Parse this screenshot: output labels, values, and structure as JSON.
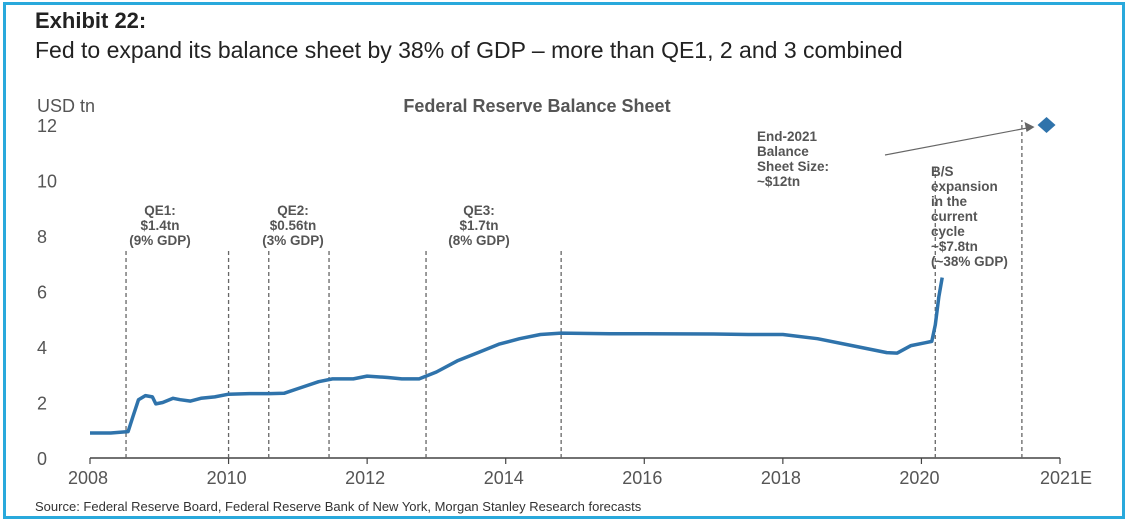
{
  "header": {
    "exhibit": "Exhibit 22:",
    "headline": "Fed to expand its balance sheet by 38% of GDP – more than QE1, 2 and 3 combined"
  },
  "footer": {
    "source": "Source: Federal Reserve Board, Federal Reserve Bank of New York, Morgan Stanley Research forecasts"
  },
  "colors": {
    "line": "#2f73ab",
    "marker": "#2f73ab",
    "frame": "#29a9dc",
    "vline": "#666666"
  },
  "chart_data": {
    "type": "line",
    "title": "Federal Reserve Balance Sheet",
    "ylabel": "USD tn",
    "xlabel": "",
    "xlim": [
      2008,
      2022
    ],
    "ylim": [
      0,
      12
    ],
    "x_ticks": [
      "2008",
      "2010",
      "2012",
      "2014",
      "2016",
      "2018",
      "2020",
      "2021E"
    ],
    "y_ticks": [
      "0",
      "2",
      "4",
      "6",
      "8",
      "10",
      "12"
    ],
    "series": [
      {
        "name": "Federal Reserve Balance Sheet",
        "points": [
          [
            2008.0,
            0.9
          ],
          [
            2008.3,
            0.9
          ],
          [
            2008.55,
            0.95
          ],
          [
            2008.62,
            1.5
          ],
          [
            2008.7,
            2.1
          ],
          [
            2008.8,
            2.25
          ],
          [
            2008.9,
            2.2
          ],
          [
            2008.95,
            1.95
          ],
          [
            2009.05,
            2.0
          ],
          [
            2009.2,
            2.15
          ],
          [
            2009.3,
            2.1
          ],
          [
            2009.45,
            2.05
          ],
          [
            2009.6,
            2.15
          ],
          [
            2009.8,
            2.2
          ],
          [
            2010.0,
            2.3
          ],
          [
            2010.3,
            2.32
          ],
          [
            2010.6,
            2.32
          ],
          [
            2010.8,
            2.33
          ],
          [
            2011.0,
            2.5
          ],
          [
            2011.3,
            2.75
          ],
          [
            2011.5,
            2.85
          ],
          [
            2011.8,
            2.85
          ],
          [
            2012.0,
            2.95
          ],
          [
            2012.3,
            2.9
          ],
          [
            2012.5,
            2.85
          ],
          [
            2012.75,
            2.85
          ],
          [
            2013.0,
            3.1
          ],
          [
            2013.3,
            3.5
          ],
          [
            2013.6,
            3.8
          ],
          [
            2013.9,
            4.1
          ],
          [
            2014.2,
            4.3
          ],
          [
            2014.5,
            4.45
          ],
          [
            2014.8,
            4.5
          ],
          [
            2015.5,
            4.48
          ],
          [
            2016.0,
            4.48
          ],
          [
            2017.0,
            4.47
          ],
          [
            2017.5,
            4.45
          ],
          [
            2018.0,
            4.45
          ],
          [
            2018.5,
            4.3
          ],
          [
            2019.0,
            4.05
          ],
          [
            2019.5,
            3.8
          ],
          [
            2019.65,
            3.78
          ],
          [
            2019.85,
            4.05
          ],
          [
            2020.05,
            4.15
          ],
          [
            2020.15,
            4.2
          ],
          [
            2020.2,
            4.8
          ],
          [
            2020.25,
            5.8
          ],
          [
            2020.3,
            6.5
          ]
        ]
      }
    ],
    "forecast_point": {
      "x": 2021.95,
      "y": 12.0,
      "label": "End-2021 Balance Sheet Size: ~$12tn"
    },
    "reference_lines": [
      2008.52,
      2010.0,
      2010.58,
      2011.45,
      2012.85,
      2014.8,
      2020.2,
      2021.45
    ],
    "annotations": [
      {
        "x": 2009.25,
        "lines": [
          "QE1:",
          "$1.4tn",
          "(9% GDP)"
        ]
      },
      {
        "x": 2011.0,
        "lines": [
          "QE2:",
          "$0.56tn",
          "(3% GDP)"
        ]
      },
      {
        "x": 2013.8,
        "lines": [
          "QE3:",
          "$1.7tn",
          "(8% GDP)"
        ]
      },
      {
        "x": 2019.0,
        "lines": [
          "End-2021",
          "Balance",
          "Sheet Size:",
          "~$12tn"
        ]
      },
      {
        "x": 2021.1,
        "lines": [
          "B/S",
          "expansion",
          "in the",
          "current",
          "cycle",
          "~$7.8tn",
          "(~38% GDP)"
        ]
      }
    ]
  }
}
